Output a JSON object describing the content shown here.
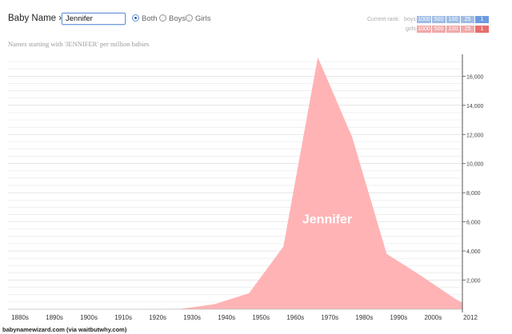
{
  "header": {
    "label": "Baby Name ›",
    "input_value": "Jennifer",
    "radios": [
      {
        "label": "Both",
        "checked": true
      },
      {
        "label": "Boys",
        "checked": false
      },
      {
        "label": "Girls",
        "checked": false
      }
    ]
  },
  "rank": {
    "caption": "Current rank:",
    "boys_label": "boys",
    "girls_label": "girls",
    "options": [
      "1000",
      "500",
      "100",
      "25",
      "1"
    ],
    "selected": "1",
    "boys_color": "#6e9be0",
    "girls_color": "#e86e6e"
  },
  "subtitle": "Names starting with 'JENNIFER' per million babies",
  "credit": "babynamewizard.com (via waitbutwhy.com)",
  "chart_data": {
    "type": "area",
    "series": [
      {
        "name": "Jennifer",
        "color": "#ffb3b5",
        "x": [
          1880,
          1890,
          1900,
          1910,
          1920,
          1930,
          1940,
          1950,
          1960,
          1970,
          1980,
          1990,
          2000,
          2010,
          2012
        ],
        "values": [
          0,
          0,
          0,
          0,
          0,
          20,
          350,
          1100,
          4300,
          17300,
          11800,
          3800,
          2300,
          700,
          450
        ]
      }
    ],
    "x_tick_labels": [
      "1880s",
      "1890s",
      "1900s",
      "1910s",
      "1920s",
      "1930s",
      "1940s",
      "1950s",
      "1960s",
      "1970s",
      "1980s",
      "1990s",
      "2000s",
      "2012"
    ],
    "y_tick_labels": [
      "2,000",
      "4,000",
      "6,000",
      "8,000",
      "10,000",
      "12,000",
      "14,000",
      "16,000"
    ],
    "y_ticks": [
      2000,
      4000,
      6000,
      8000,
      10000,
      12000,
      14000,
      16000
    ],
    "ylim": [
      0,
      17500
    ],
    "xlim": [
      1880,
      2012
    ],
    "grid": true,
    "grid_color": "#e6e6e6"
  }
}
